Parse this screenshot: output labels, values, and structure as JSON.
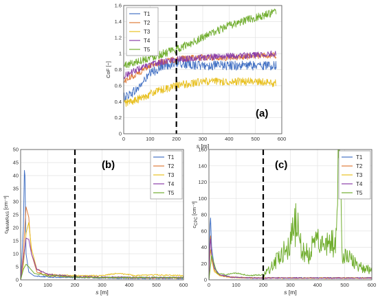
{
  "chart_data": [
    {
      "panel_label": "(a)",
      "type": "line",
      "xlabel": "s [m]",
      "ylabel": "CoF [−]",
      "xlim": [
        0,
        600
      ],
      "ylim": [
        0,
        1.6
      ],
      "xticks": [
        0,
        100,
        200,
        300,
        400,
        500,
        600
      ],
      "yticks": [
        0,
        0.2,
        0.4,
        0.6,
        0.8,
        1,
        1.2,
        1.4,
        1.6
      ],
      "ytick_labels": [
        "0",
        "0.2",
        "0.4",
        "0.6",
        "0.8",
        "1",
        "1.2",
        "1.4",
        "1.6"
      ],
      "grid": true,
      "legend_position": "top-left",
      "vline_x": 200,
      "series": [
        {
          "name": "T1",
          "color": "#4472c4",
          "x": [
            0,
            50,
            100,
            150,
            200,
            300,
            400,
            500,
            580
          ],
          "y": [
            0.45,
            0.55,
            0.75,
            0.85,
            0.88,
            0.85,
            0.85,
            0.85,
            0.85
          ],
          "noise": 0.06
        },
        {
          "name": "T2",
          "color": "#e07b39",
          "x": [
            0,
            50,
            100,
            150,
            200,
            300,
            400,
            500,
            580
          ],
          "y": [
            0.65,
            0.75,
            0.85,
            0.9,
            0.93,
            0.95,
            0.95,
            0.97,
            0.98
          ],
          "noise": 0.04
        },
        {
          "name": "T3",
          "color": "#e8c020",
          "x": [
            0,
            50,
            100,
            150,
            200,
            300,
            400,
            500,
            580
          ],
          "y": [
            0.38,
            0.42,
            0.5,
            0.55,
            0.6,
            0.65,
            0.65,
            0.65,
            0.63
          ],
          "noise": 0.05
        },
        {
          "name": "T4",
          "color": "#8a3ea8",
          "x": [
            0,
            50,
            100,
            150,
            200,
            300,
            400,
            500,
            580
          ],
          "y": [
            0.72,
            0.8,
            0.86,
            0.9,
            0.93,
            0.95,
            0.97,
            0.98,
            1.0
          ],
          "noise": 0.04
        },
        {
          "name": "T5",
          "color": "#70ad2e",
          "x": [
            0,
            50,
            100,
            150,
            200,
            300,
            400,
            500,
            580
          ],
          "y": [
            0.85,
            0.9,
            0.95,
            1.0,
            1.05,
            1.2,
            1.35,
            1.45,
            1.52
          ],
          "noise": 0.05
        }
      ]
    },
    {
      "panel_label": "(b)",
      "type": "line",
      "xlabel": "s [m]",
      "ylabel": "c_MiniWRAS [cm⁻³]",
      "ylabel_main": "c",
      "ylabel_sub": "MiniWRAS",
      "ylabel_unit": " [cm⁻³]",
      "xlim": [
        0,
        600
      ],
      "ylim": [
        0,
        50
      ],
      "xticks": [
        0,
        100,
        200,
        300,
        400,
        500,
        600
      ],
      "yticks": [
        0,
        5,
        10,
        15,
        20,
        25,
        30,
        35,
        40,
        45,
        50
      ],
      "ytick_labels": [
        "0",
        "5",
        "10",
        "15",
        "20",
        "25",
        "30",
        "35",
        "40",
        "45",
        "50"
      ],
      "grid": true,
      "legend_position": "top-right",
      "vline_x": 200,
      "series": [
        {
          "name": "T1",
          "color": "#4472c4",
          "x": [
            0,
            10,
            15,
            20,
            30,
            50,
            100,
            200,
            300,
            400,
            500,
            600
          ],
          "y": [
            0,
            20,
            47.5,
            10,
            3,
            1.5,
            1.0,
            0.8,
            0.6,
            0.5,
            0.5,
            0.5
          ]
        },
        {
          "name": "T2",
          "color": "#e07b39",
          "x": [
            0,
            10,
            20,
            30,
            40,
            60,
            100,
            200,
            300,
            400,
            500,
            600
          ],
          "y": [
            0,
            10,
            28,
            24,
            10,
            3,
            1.5,
            1.0,
            0.8,
            0.7,
            0.6,
            0.6
          ]
        },
        {
          "name": "T3",
          "color": "#e8c020",
          "x": [
            0,
            10,
            20,
            30,
            40,
            60,
            100,
            200,
            300,
            360,
            420,
            500,
            600
          ],
          "y": [
            0,
            5,
            18,
            22,
            12,
            4,
            2,
            1.5,
            1.5,
            2.5,
            1.5,
            1.8,
            1.5
          ]
        },
        {
          "name": "T4",
          "color": "#8a3ea8",
          "x": [
            0,
            10,
            20,
            30,
            40,
            60,
            100,
            200,
            300,
            400,
            500,
            600
          ],
          "y": [
            0,
            8,
            16,
            15.5,
            10,
            4,
            2,
            1.2,
            1.0,
            0.9,
            0.8,
            0.8
          ]
        },
        {
          "name": "T5",
          "color": "#70ad2e",
          "x": [
            0,
            10,
            20,
            30,
            50,
            100,
            200,
            300,
            400,
            500,
            600
          ],
          "y": [
            0,
            4,
            6,
            5,
            2.5,
            1.5,
            1.0,
            0.8,
            0.8,
            0.8,
            0.8
          ]
        }
      ]
    },
    {
      "panel_label": "(c)",
      "type": "line",
      "xlabel": "s [m]",
      "ylabel": "c_CPC [cm⁻³]",
      "ylabel_main": "c",
      "ylabel_sub": "CPC",
      "ylabel_unit": " [cm⁻³]",
      "xlim": [
        0,
        600
      ],
      "ylim": [
        0,
        160
      ],
      "xticks": [
        0,
        100,
        200,
        300,
        400,
        500,
        600
      ],
      "yticks": [
        0,
        20,
        40,
        60,
        80,
        100,
        120,
        140,
        160
      ],
      "ytick_labels": [
        "0",
        "20",
        "40",
        "60",
        "80",
        "100",
        "120",
        "140",
        "160"
      ],
      "grid": true,
      "legend_position": "top-right",
      "vline_x": 200,
      "series": [
        {
          "name": "T1",
          "color": "#4472c4",
          "x": [
            0,
            5,
            10,
            20,
            40,
            80,
            150,
            300,
            600
          ],
          "y": [
            0,
            85,
            40,
            15,
            6,
            3,
            2,
            2,
            2
          ]
        },
        {
          "name": "T2",
          "color": "#e07b39",
          "x": [
            0,
            5,
            10,
            20,
            40,
            80,
            150,
            300,
            600
          ],
          "y": [
            0,
            60,
            30,
            12,
            5,
            3,
            2,
            2,
            2
          ]
        },
        {
          "name": "T3",
          "color": "#e8c020",
          "x": [
            0,
            5,
            10,
            20,
            40,
            80,
            150,
            300,
            600
          ],
          "y": [
            0,
            40,
            25,
            10,
            5,
            3,
            2,
            2,
            2
          ]
        },
        {
          "name": "T4",
          "color": "#8a3ea8",
          "x": [
            0,
            5,
            10,
            20,
            40,
            80,
            150,
            300,
            600
          ],
          "y": [
            0,
            55,
            30,
            14,
            6,
            3,
            2,
            2,
            2
          ]
        },
        {
          "name": "T5",
          "color": "#70ad2e",
          "x": [
            0,
            10,
            30,
            60,
            100,
            150,
            200,
            230,
            260,
            300,
            320,
            350,
            400,
            450,
            470,
            480,
            490,
            520,
            560,
            600
          ],
          "y": [
            0,
            30,
            8,
            6,
            8,
            5,
            6,
            15,
            30,
            45,
            70,
            30,
            45,
            40,
            60,
            155,
            35,
            25,
            15,
            12
          ]
        }
      ]
    }
  ]
}
